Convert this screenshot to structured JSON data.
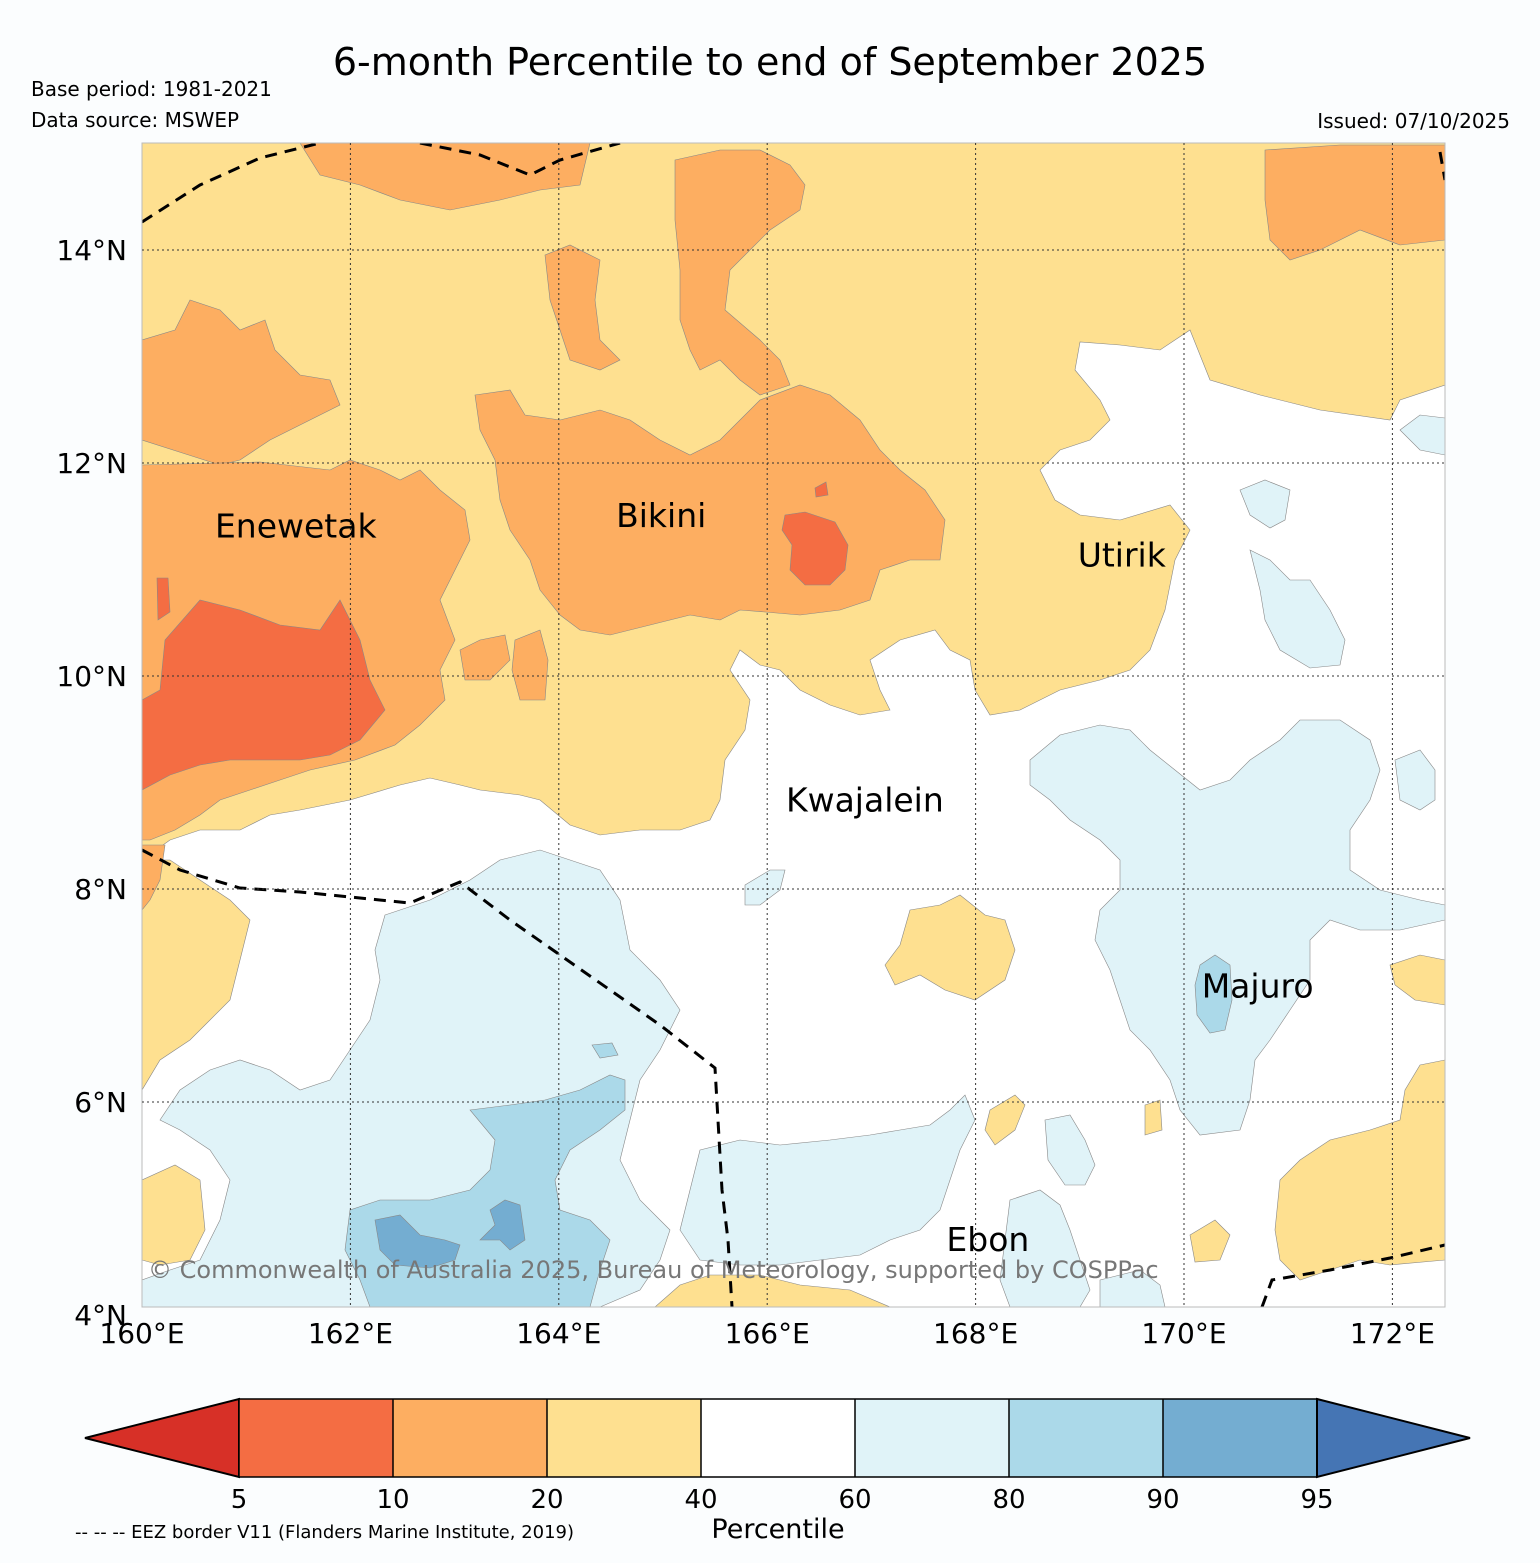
{
  "title": "6-month Percentile to end of September 2025",
  "base_period": "Base period: 1981-2021",
  "data_source": "Data source: MSWEP",
  "issued": "Issued: 07/10/2025",
  "copyright": "© Commonwealth of Australia 2025, Bureau of Meteorology, supported by COSPPac",
  "eez_note": "-- -- -- EEZ border V11 (Flanders Marine Institute, 2019)",
  "colors": {
    "below5": "#d73027",
    "p5_10": "#f46d43",
    "p10_20": "#fdae61",
    "p20_40": "#fee090",
    "p40_60": "#ffffff",
    "p60_80": "#e0f3f8",
    "p80_90": "#abd9e9",
    "p90_95": "#74add1",
    "above95": "#4575b4"
  },
  "map": {
    "lat_labels": [
      "14°N",
      "12°N",
      "10°N",
      "8°N",
      "6°N",
      "4°N"
    ],
    "lon_labels": [
      "160°E",
      "162°E",
      "164°E",
      "166°E",
      "168°E",
      "170°E",
      "172°E"
    ],
    "places": [
      {
        "name": "Enewetak",
        "lon": 160.7,
        "lat": 11.3
      },
      {
        "name": "Bikini",
        "lon": 164.55,
        "lat": 11.4
      },
      {
        "name": "Utirik",
        "lon": 168.98,
        "lat": 11.03
      },
      {
        "name": "Kwajalein",
        "lon": 166.18,
        "lat": 8.73
      },
      {
        "name": "Majuro",
        "lon": 170.17,
        "lat": 6.98
      },
      {
        "name": "Ebon",
        "lon": 167.72,
        "lat": 4.6
      }
    ]
  },
  "legend": {
    "title": "Percentile",
    "ticks": [
      "5",
      "10",
      "20",
      "40",
      "60",
      "80",
      "90",
      "95"
    ]
  }
}
